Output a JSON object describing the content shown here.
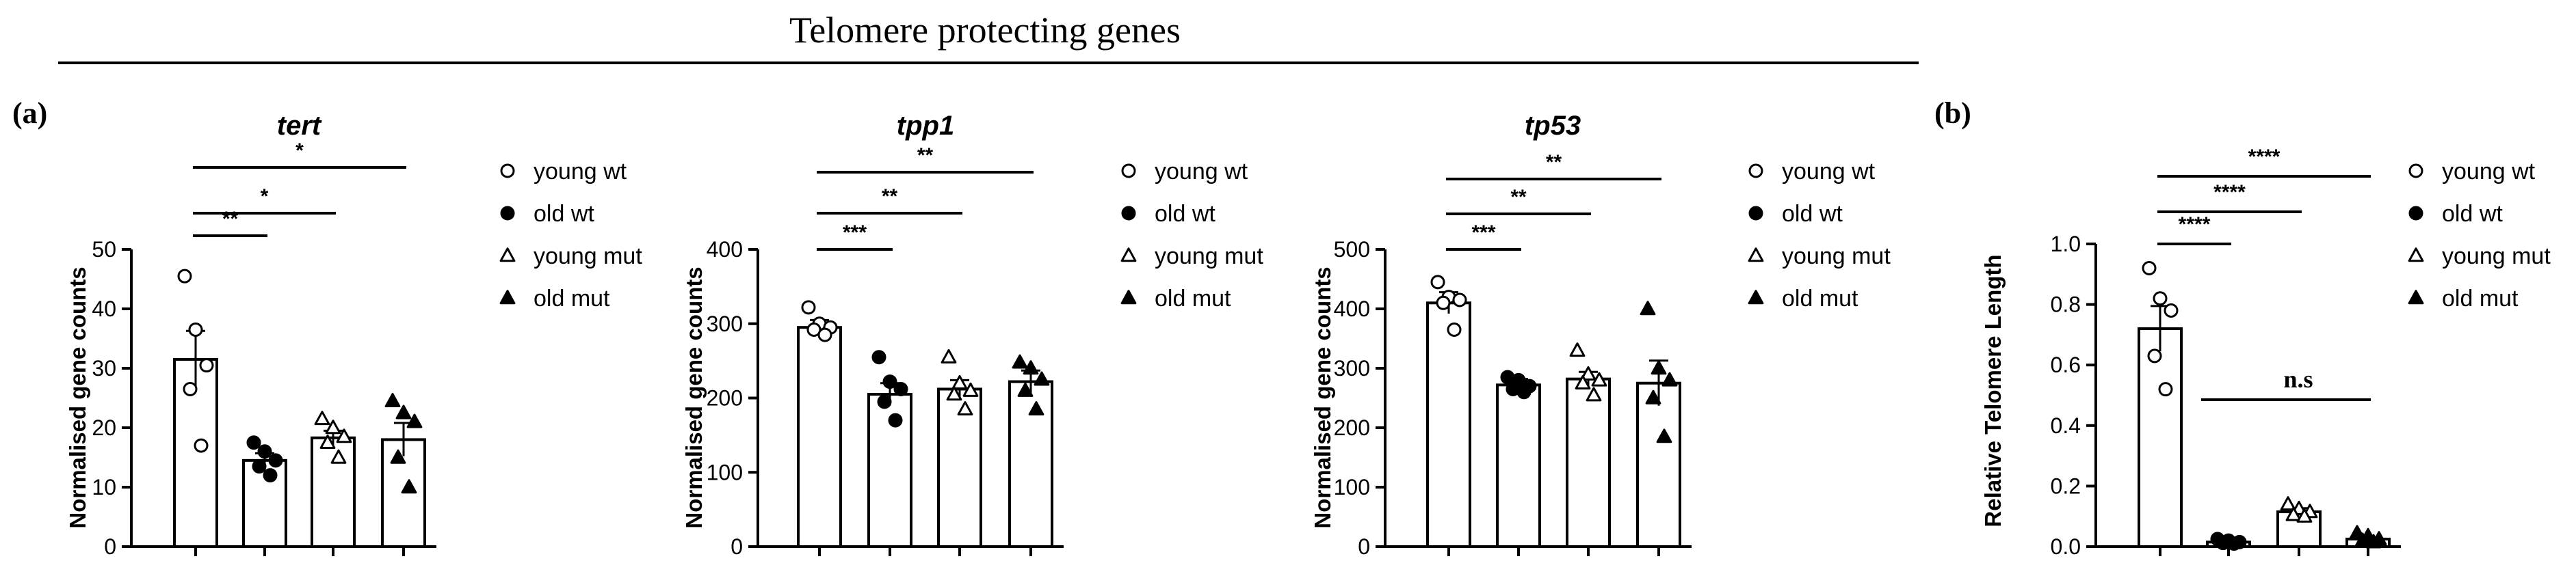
{
  "header": {
    "title": "Telomere protecting genes"
  },
  "panels": {
    "a": "(a)",
    "b": "(b)"
  },
  "colors": {
    "ink": "#000000",
    "fill": "#ffffff"
  },
  "chart_data": [
    {
      "type": "bar",
      "title": "tert",
      "ylabel": "Normalised gene counts",
      "xlabel": "",
      "ylim": [
        0,
        50
      ],
      "yticks": [
        0,
        10,
        20,
        30,
        40,
        50
      ],
      "categories": [
        "young wt",
        "old wt",
        "young mut",
        "old mut"
      ],
      "markers": [
        "open-circle",
        "filled-circle",
        "open-triangle",
        "filled-triangle"
      ],
      "values": [
        31.5,
        14.5,
        18.3,
        18.0
      ],
      "errors": [
        4.8,
        1.2,
        1.2,
        2.8
      ],
      "points": [
        [
          45.5,
          36.5,
          30.5,
          26.5,
          17.0
        ],
        [
          17.5,
          16.0,
          14.5,
          13.5,
          12.0
        ],
        [
          21.5,
          20.0,
          18.5,
          17.5,
          15.0
        ],
        [
          24.5,
          22.5,
          21.0,
          15.0,
          10.0
        ]
      ],
      "significance": [
        {
          "from": 0,
          "to": 1,
          "label": "**"
        },
        {
          "from": 0,
          "to": 2,
          "label": "*"
        },
        {
          "from": 0,
          "to": 3,
          "label": "*"
        }
      ],
      "legend": [
        "young wt",
        "old wt",
        "young mut",
        "old mut"
      ]
    },
    {
      "type": "bar",
      "title": "tpp1",
      "ylabel": "Normalised gene counts",
      "xlabel": "",
      "ylim": [
        0,
        400
      ],
      "yticks": [
        0,
        100,
        200,
        300,
        400
      ],
      "categories": [
        "young wt",
        "old wt",
        "young mut",
        "old mut"
      ],
      "markers": [
        "open-circle",
        "filled-circle",
        "open-triangle",
        "filled-triangle"
      ],
      "values": [
        295,
        205,
        212,
        222
      ],
      "errors": [
        10,
        15,
        12,
        15
      ],
      "points": [
        [
          322,
          300,
          295,
          292,
          285
        ],
        [
          255,
          222,
          212,
          195,
          170
        ],
        [
          255,
          220,
          210,
          205,
          185
        ],
        [
          248,
          240,
          225,
          210,
          185
        ]
      ],
      "significance": [
        {
          "from": 0,
          "to": 1,
          "label": "***"
        },
        {
          "from": 0,
          "to": 2,
          "label": "**"
        },
        {
          "from": 0,
          "to": 3,
          "label": "**"
        }
      ],
      "legend": [
        "young wt",
        "old wt",
        "young mut",
        "old mut"
      ]
    },
    {
      "type": "bar",
      "title": "tp53",
      "ylabel": "Normalised gene counts",
      "xlabel": "",
      "ylim": [
        0,
        500
      ],
      "yticks": [
        0,
        100,
        200,
        300,
        400,
        500
      ],
      "categories": [
        "young wt",
        "old wt",
        "young mut",
        "old mut"
      ],
      "markers": [
        "open-circle",
        "filled-circle",
        "open-triangle",
        "filled-triangle"
      ],
      "values": [
        410,
        272,
        282,
        275
      ],
      "errors": [
        18,
        10,
        12,
        38
      ],
      "points": [
        [
          445,
          420,
          415,
          410,
          365
        ],
        [
          285,
          280,
          270,
          265,
          260
        ],
        [
          330,
          290,
          280,
          275,
          255
        ],
        [
          400,
          300,
          280,
          250,
          185
        ]
      ],
      "significance": [
        {
          "from": 0,
          "to": 1,
          "label": "***"
        },
        {
          "from": 0,
          "to": 2,
          "label": "**"
        },
        {
          "from": 0,
          "to": 3,
          "label": "**"
        }
      ],
      "legend": [
        "young wt",
        "old wt",
        "young mut",
        "old mut"
      ]
    },
    {
      "type": "bar",
      "title": "",
      "ylabel": "Relative Telomere Length",
      "xlabel": "",
      "ylim": [
        0,
        1.0
      ],
      "yticks": [
        0.0,
        0.2,
        0.4,
        0.6,
        0.8,
        1.0
      ],
      "tick_decimals": 1,
      "categories": [
        "young wt",
        "old wt",
        "young mut",
        "old mut"
      ],
      "markers": [
        "open-circle",
        "filled-circle",
        "open-triangle",
        "filled-triangle"
      ],
      "values": [
        0.72,
        0.015,
        0.115,
        0.025
      ],
      "errors": [
        0.075,
        0.004,
        0.012,
        0.006
      ],
      "points": [
        [
          0.92,
          0.82,
          0.78,
          0.63,
          0.52
        ],
        [
          0.025,
          0.02,
          0.015,
          0.012,
          0.01
        ],
        [
          0.14,
          0.125,
          0.115,
          0.105,
          0.1
        ],
        [
          0.045,
          0.035,
          0.025,
          0.02,
          0.015
        ]
      ],
      "significance": [
        {
          "from": 0,
          "to": 1,
          "label": "****"
        },
        {
          "from": 0,
          "to": 2,
          "label": "****"
        },
        {
          "from": 0,
          "to": 3,
          "label": "****"
        }
      ],
      "ns_bracket": {
        "from": 1,
        "to": 3,
        "label": "n.s"
      },
      "legend": [
        "young wt",
        "old wt",
        "young mut",
        "old mut"
      ]
    }
  ]
}
